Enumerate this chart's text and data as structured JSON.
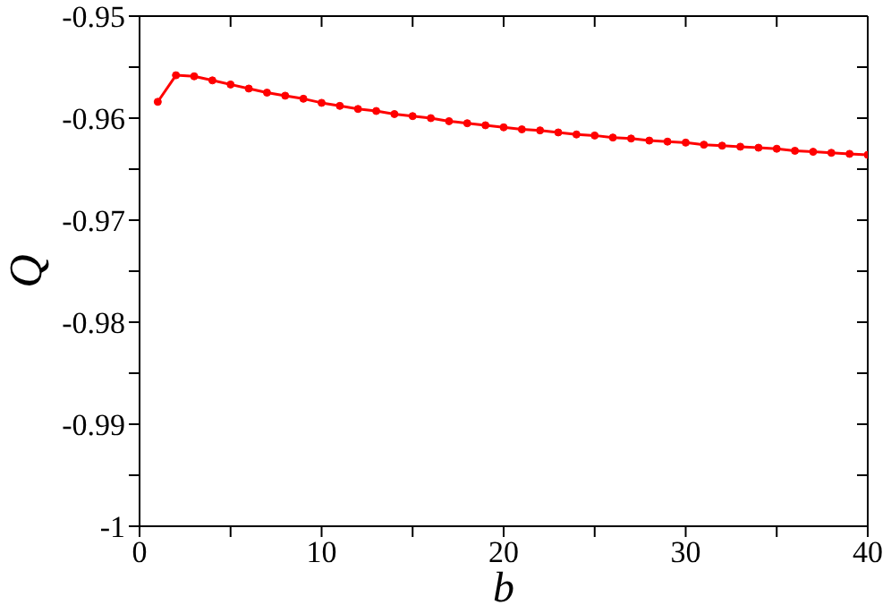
{
  "chart_data": {
    "type": "line",
    "xlabel": "b",
    "ylabel": "Q",
    "x": [
      1,
      2,
      3,
      4,
      5,
      6,
      7,
      8,
      9,
      10,
      11,
      12,
      13,
      14,
      15,
      16,
      17,
      18,
      19,
      20,
      21,
      22,
      23,
      24,
      25,
      26,
      27,
      28,
      29,
      30,
      31,
      32,
      33,
      34,
      35,
      36,
      37,
      38,
      39,
      40
    ],
    "series": [
      {
        "color": "#ff0000",
        "values": [
          -0.9584,
          -0.9558,
          -0.9559,
          -0.9563,
          -0.9567,
          -0.9571,
          -0.9575,
          -0.9578,
          -0.9581,
          -0.9585,
          -0.9588,
          -0.9591,
          -0.9593,
          -0.9596,
          -0.9598,
          -0.96,
          -0.9603,
          -0.9605,
          -0.9607,
          -0.9609,
          -0.9611,
          -0.9612,
          -0.9614,
          -0.9616,
          -0.9617,
          -0.9619,
          -0.962,
          -0.9622,
          -0.9623,
          -0.9624,
          -0.9626,
          -0.9627,
          -0.9628,
          -0.9629,
          -0.963,
          -0.9632,
          -0.9633,
          -0.9634,
          -0.9635,
          -0.9636
        ]
      }
    ],
    "xlim": [
      0,
      40
    ],
    "xticks": [
      0,
      {
        "value": 5,
        "label": null
      },
      10,
      {
        "value": 15,
        "label": null
      },
      20,
      {
        "value": 25,
        "label": null
      },
      30,
      {
        "value": 35,
        "label": null
      },
      40
    ],
    "ylim": [
      -1,
      -0.95
    ],
    "yticks": [
      -1,
      {
        "value": -0.995,
        "label": null
      },
      -0.99,
      {
        "value": -0.985,
        "label": null
      },
      -0.98,
      {
        "value": -0.975,
        "label": null
      },
      -0.97,
      {
        "value": -0.965,
        "label": null
      },
      -0.96,
      {
        "value": -0.955,
        "label": null
      },
      -0.95
    ],
    "marker": "circle",
    "line_style": "solid",
    "grid": false,
    "legend": false
  }
}
